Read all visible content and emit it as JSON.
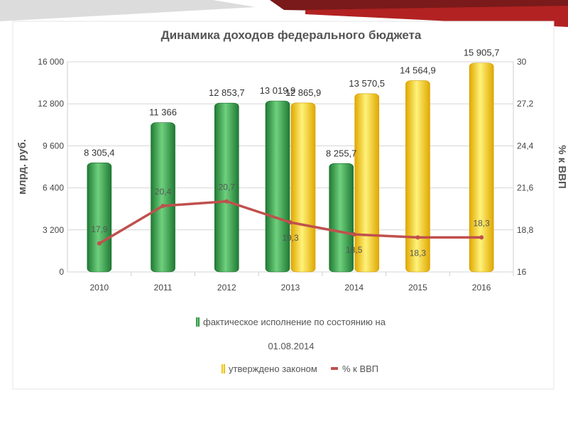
{
  "chart_data": {
    "type": "bar",
    "title": "Динамика доходов федерального бюджета",
    "ylabel": "млрд. руб.",
    "y2label": "% к ВВП",
    "categories": [
      "2010",
      "2011",
      "2012",
      "2013",
      "2014",
      "2015",
      "2016"
    ],
    "ylim": [
      0,
      16000
    ],
    "y2lim": [
      16,
      30
    ],
    "yticks": [
      "0",
      "3 200",
      "6 400",
      "9 600",
      "12 800",
      "16 000"
    ],
    "y2ticks": [
      "16",
      "18,8",
      "21,6",
      "24,4",
      "27,2",
      "30"
    ],
    "grid": true,
    "legend_position": "bottom",
    "series": [
      {
        "name": "фактическое исполнение по состоянию на 01.08.2014",
        "kind": "bar",
        "color": "#3a9a4a",
        "values": [
          8305.4,
          11366,
          12853.7,
          13019.9,
          8255.7,
          null,
          null
        ],
        "labels": [
          "8 305,4",
          "11 366",
          "12 853,7",
          "13 019,9",
          "8 255,7",
          "",
          ""
        ]
      },
      {
        "name": "утверждено законом",
        "kind": "bar",
        "color": "#f5c518",
        "values": [
          null,
          null,
          null,
          12865.9,
          13570.5,
          14564.9,
          15905.7
        ],
        "labels": [
          "",
          "",
          "",
          "12 865,9",
          "13 570,5",
          "14 564,9",
          "15 905,7"
        ]
      },
      {
        "name": "% к ВВП",
        "kind": "line",
        "axis": "right",
        "color": "#c0504d",
        "values": [
          17.9,
          20.4,
          20.7,
          19.3,
          18.5,
          18.3,
          18.3
        ],
        "labels": [
          "17,9",
          "20,4",
          "20,7",
          "19,3",
          "18,5",
          "18,3",
          "18,3"
        ]
      }
    ]
  }
}
